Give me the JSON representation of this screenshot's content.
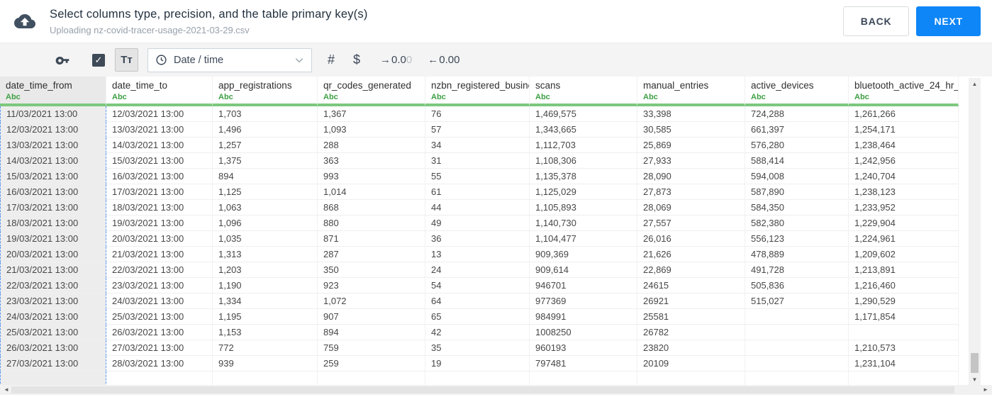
{
  "header": {
    "title": "Select columns type, precision, and the table primary key(s)",
    "subtitle": "Uploading nz-covid-tracer-usage-2021-03-29.csv",
    "back_label": "BACK",
    "next_label": "NEXT"
  },
  "toolbar": {
    "checkbox_checked": true,
    "check_glyph": "✓",
    "text_format_label": "Tᴛ",
    "type_dropdown_value": "Date / time",
    "number_symbol": "#",
    "currency_symbol": "$",
    "precision_increase": {
      "arrow": "→",
      "dark": "0.0",
      "light": "0"
    },
    "precision_decrease": {
      "arrow": "←",
      "value": "0.00"
    }
  },
  "table": {
    "columns": [
      {
        "name": "date_time_from",
        "type_label": "Abc",
        "selected": true
      },
      {
        "name": "date_time_to",
        "type_label": "Abc",
        "selected": false
      },
      {
        "name": "app_registrations",
        "type_label": "Abc",
        "selected": false
      },
      {
        "name": "qr_codes_generated",
        "type_label": "Abc",
        "selected": false
      },
      {
        "name": "nzbn_registered_busine",
        "type_label": "Abc",
        "selected": false
      },
      {
        "name": "scans",
        "type_label": "Abc",
        "selected": false
      },
      {
        "name": "manual_entries",
        "type_label": "Abc",
        "selected": false
      },
      {
        "name": "active_devices",
        "type_label": "Abc",
        "selected": false
      },
      {
        "name": "bluetooth_active_24_hr_",
        "type_label": "Abc",
        "selected": false
      }
    ],
    "rows": [
      [
        "11/03/2021 13:00",
        "12/03/2021 13:00",
        "1,703",
        "1,367",
        "76",
        "1,469,575",
        "33,398",
        "724,288",
        "1,261,266"
      ],
      [
        "12/03/2021 13:00",
        "13/03/2021 13:00",
        "1,496",
        "1,093",
        "57",
        "1,343,665",
        "30,585",
        "661,397",
        "1,254,171"
      ],
      [
        "13/03/2021 13:00",
        "14/03/2021 13:00",
        "1,257",
        "288",
        "34",
        "1,112,703",
        "25,869",
        "576,280",
        "1,238,464"
      ],
      [
        "14/03/2021 13:00",
        "15/03/2021 13:00",
        "1,375",
        "363",
        "31",
        "1,108,306",
        "27,933",
        "588,414",
        "1,242,956"
      ],
      [
        "15/03/2021 13:00",
        "16/03/2021 13:00",
        "894",
        "993",
        "55",
        "1,135,378",
        "28,090",
        "594,008",
        "1,240,704"
      ],
      [
        "16/03/2021 13:00",
        "17/03/2021 13:00",
        "1,125",
        "1,014",
        "61",
        "1,125,029",
        "27,873",
        "587,890",
        "1,238,123"
      ],
      [
        "17/03/2021 13:00",
        "18/03/2021 13:00",
        "1,063",
        "868",
        "44",
        "1,105,893",
        "28,069",
        "584,350",
        "1,233,952"
      ],
      [
        "18/03/2021 13:00",
        "19/03/2021 13:00",
        "1,096",
        "880",
        "49",
        "1,140,730",
        "27,557",
        "582,380",
        "1,229,904"
      ],
      [
        "19/03/2021 13:00",
        "20/03/2021 13:00",
        "1,035",
        "871",
        "36",
        "1,104,477",
        "26,016",
        "556,123",
        "1,224,961"
      ],
      [
        "20/03/2021 13:00",
        "21/03/2021 13:00",
        "1,313",
        "287",
        "13",
        "909,369",
        "21,626",
        "478,889",
        "1,209,602"
      ],
      [
        "21/03/2021 13:00",
        "22/03/2021 13:00",
        "1,203",
        "350",
        "24",
        "909,614",
        "22,869",
        "491,728",
        "1,213,891"
      ],
      [
        "22/03/2021 13:00",
        "23/03/2021 13:00",
        "1,190",
        "923",
        "54",
        "946701",
        "24615",
        "505,836",
        "1,216,460"
      ],
      [
        "23/03/2021 13:00",
        "24/03/2021 13:00",
        "1,334",
        "1,072",
        "64",
        "977369",
        "26921",
        "515,027",
        "1,290,529"
      ],
      [
        "24/03/2021 13:00",
        "25/03/2021 13:00",
        "1,195",
        "907",
        "65",
        "984991",
        "25581",
        "",
        "1,171,854"
      ],
      [
        "25/03/2021 13:00",
        "26/03/2021 13:00",
        "1,153",
        "894",
        "42",
        "1008250",
        "26782",
        "",
        ""
      ],
      [
        "26/03/2021 13:00",
        "27/03/2021 13:00",
        "772",
        "759",
        "35",
        "960193",
        "23820",
        "",
        "1,210,573"
      ],
      [
        "27/03/2021 13:00",
        "28/03/2021 13:00",
        "939",
        "259",
        "19",
        "797481",
        "20109",
        "",
        "1,231,104"
      ]
    ]
  },
  "scrollbars": {
    "up_arrow": "▲",
    "down_arrow": "▼",
    "left_arrow": "◄",
    "right_arrow": "►"
  },
  "colors": {
    "accent_blue": "#0e86f7",
    "type_green": "#3da044",
    "header_underline_green": "#7dc87e",
    "selected_column_bg": "#ededed",
    "selection_dashed_border": "#5a97f5",
    "toolbar_bg": "#f4f4f4",
    "title_text": "#22313f",
    "subtitle_text": "#97a1ab"
  }
}
